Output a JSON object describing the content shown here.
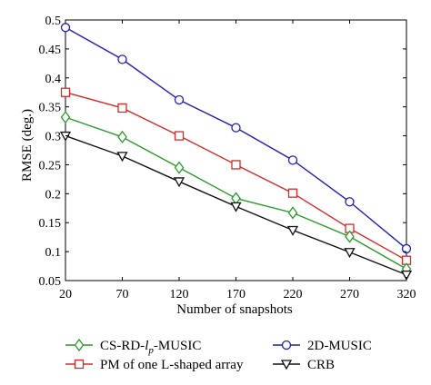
{
  "chart_data": {
    "type": "line",
    "xlabel": "Number of snapshots",
    "ylabel": "RMSE (deg.)",
    "x": [
      20,
      70,
      120,
      170,
      220,
      270,
      320
    ],
    "xlim": [
      20,
      320
    ],
    "ylim": [
      0.05,
      0.5
    ],
    "xticks": [
      "20",
      "70",
      "120",
      "170",
      "220",
      "270",
      "320"
    ],
    "yticks": [
      "0.05",
      "0.1",
      "0.15",
      "0.2",
      "0.25",
      "0.3",
      "0.35",
      "0.4",
      "0.45",
      "0.5"
    ],
    "legend_position": "bottom-outside",
    "series": [
      {
        "name": "2D-MUSIC",
        "color": "#1f1fb4",
        "marker": "circle",
        "values": [
          0.487,
          0.432,
          0.362,
          0.314,
          0.258,
          0.186,
          0.105
        ]
      },
      {
        "name": "PM of one L-shaped array",
        "color": "#d42a2a",
        "marker": "square",
        "values": [
          0.375,
          0.348,
          0.3,
          0.25,
          0.201,
          0.14,
          0.085
        ]
      },
      {
        "name": "CS-RD-",
        "name_italic": "l",
        "name_sub": "p",
        "name_suffix": "-MUSIC",
        "color": "#2a9a2a",
        "marker": "diamond",
        "values": [
          0.332,
          0.298,
          0.245,
          0.192,
          0.167,
          0.126,
          0.07
        ]
      },
      {
        "name": "CRB",
        "color": "#111111",
        "marker": "triangle-down",
        "values": [
          0.3,
          0.265,
          0.221,
          0.178,
          0.137,
          0.099,
          0.06
        ]
      }
    ]
  }
}
